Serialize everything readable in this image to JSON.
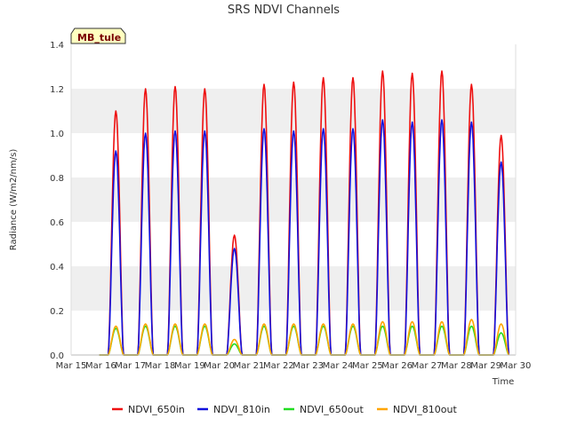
{
  "chart_data": {
    "type": "line",
    "title": "SRS NDVI Channels",
    "xlabel": "Time",
    "ylabel": "Radiance (W/m2/nm/s)",
    "badge": "MB_tule",
    "ylim": [
      0,
      1.4
    ],
    "xlim": [
      15,
      30
    ],
    "x_ticks": [
      "Mar 15",
      "Mar 16",
      "Mar 17",
      "Mar 18",
      "Mar 19",
      "Mar 20",
      "Mar 21",
      "Mar 22",
      "Mar 23",
      "Mar 24",
      "Mar 25",
      "Mar 26",
      "Mar 27",
      "Mar 28",
      "Mar 29",
      "Mar 30"
    ],
    "y_ticks": [
      "0.0",
      "0.2",
      "0.4",
      "0.6",
      "0.8",
      "1.0",
      "1.2",
      "1.4"
    ],
    "grid": "horizontal bands",
    "legend_position": "bottom",
    "days": [
      "Mar 16",
      "Mar 17",
      "Mar 18",
      "Mar 19",
      "Mar 20",
      "Mar 21",
      "Mar 22",
      "Mar 23",
      "Mar 24",
      "Mar 25",
      "Mar 26",
      "Mar 27",
      "Mar 28",
      "Mar 29"
    ],
    "series": [
      {
        "name": "NDVI_650in",
        "color": "#ee1111",
        "daily_peak": [
          1.1,
          1.2,
          1.21,
          1.2,
          0.54,
          1.22,
          1.23,
          1.25,
          1.25,
          1.28,
          1.27,
          1.28,
          1.22,
          0.99
        ]
      },
      {
        "name": "NDVI_810in",
        "color": "#1111dd",
        "daily_peak": [
          0.92,
          1.0,
          1.01,
          1.01,
          0.48,
          1.02,
          1.01,
          1.02,
          1.02,
          1.06,
          1.05,
          1.06,
          1.05,
          0.87
        ]
      },
      {
        "name": "NDVI_650out",
        "color": "#22dd22",
        "daily_peak": [
          0.12,
          0.13,
          0.13,
          0.13,
          0.05,
          0.13,
          0.13,
          0.13,
          0.13,
          0.13,
          0.13,
          0.13,
          0.13,
          0.1
        ]
      },
      {
        "name": "NDVI_810out",
        "color": "#ffa500",
        "daily_peak": [
          0.13,
          0.14,
          0.14,
          0.14,
          0.07,
          0.14,
          0.14,
          0.14,
          0.14,
          0.15,
          0.15,
          0.15,
          0.16,
          0.14
        ]
      }
    ]
  }
}
